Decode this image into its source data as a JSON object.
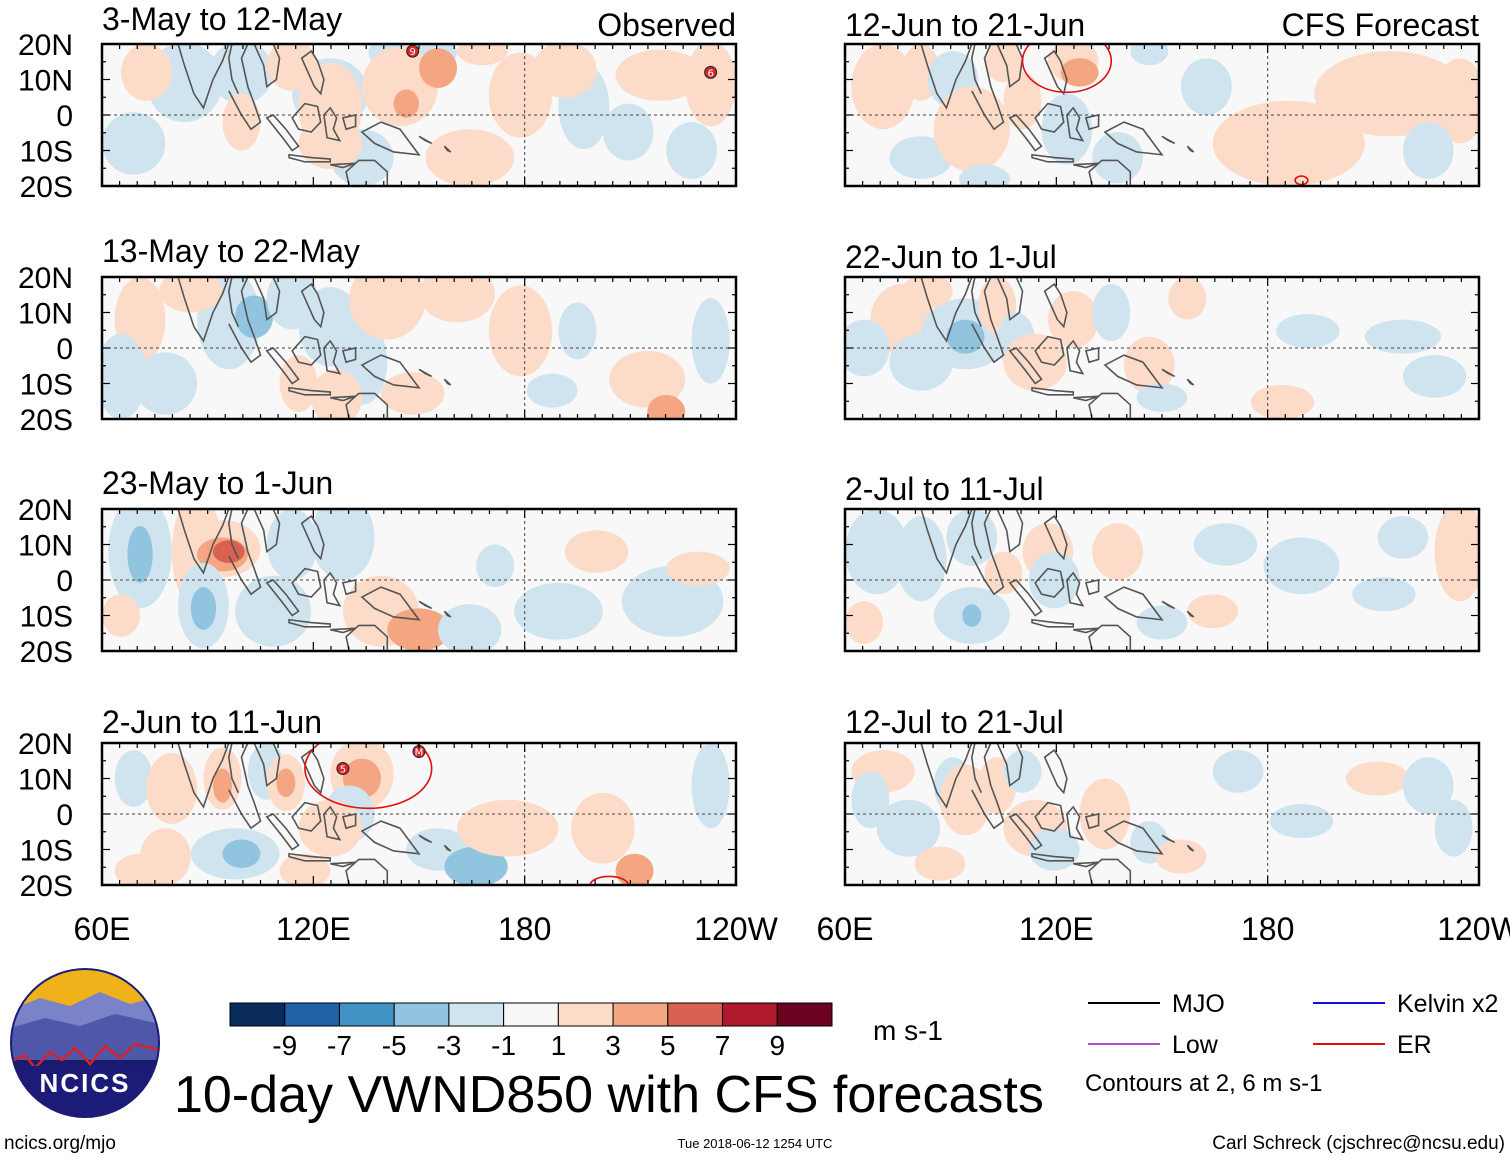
{
  "panels": [
    {
      "id": "obs-1",
      "title": "3-May to 12-May",
      "label": "Observed",
      "col": 0,
      "row": 0
    },
    {
      "id": "obs-2",
      "title": "13-May to 22-May",
      "col": 0,
      "row": 1
    },
    {
      "id": "obs-3",
      "title": "23-May to 1-Jun",
      "col": 0,
      "row": 2
    },
    {
      "id": "obs-4",
      "title": "2-Jun to 11-Jun",
      "col": 0,
      "row": 3
    },
    {
      "id": "fc-1",
      "title": "12-Jun to 21-Jun",
      "label": "CFS Forecast",
      "col": 1,
      "row": 0
    },
    {
      "id": "fc-2",
      "title": "22-Jun to 1-Jul",
      "col": 1,
      "row": 1
    },
    {
      "id": "fc-3",
      "title": "2-Jul to 11-Jul",
      "col": 1,
      "row": 2
    },
    {
      "id": "fc-4",
      "title": "12-Jul to 21-Jul",
      "col": 1,
      "row": 3
    }
  ],
  "lat_labels": [
    "20N",
    "10N",
    "0",
    "10S",
    "20S"
  ],
  "lon_labels": [
    "60E",
    "120E",
    "180",
    "120W"
  ],
  "colorbar": {
    "colors": [
      "#0a2c5c",
      "#1f62a8",
      "#4193c5",
      "#91c4de",
      "#d0e4f0",
      "#f7f7f7",
      "#fcdcc9",
      "#f4a683",
      "#d86151",
      "#b11a2d",
      "#6a0220"
    ],
    "labels": [
      "-9",
      "-7",
      "-5",
      "-3",
      "-1",
      "1",
      "3",
      "5",
      "7",
      "9"
    ],
    "units": "m s-1"
  },
  "legend": {
    "items": [
      {
        "label": "MJO",
        "color": "#000000"
      },
      {
        "label": "Kelvin x2",
        "color": "#1111dd"
      },
      {
        "label": "Low",
        "color": "#a855d8"
      },
      {
        "label": "ER",
        "color": "#dd1111"
      }
    ],
    "note": "Contours at 2, 6 m s-1"
  },
  "logo_text": "NCICS",
  "title": "10-day VWND850 with CFS forecasts",
  "footer": {
    "left": "ncics.org/mjo",
    "center": "Tue 2018-06-12 1254 UTC",
    "right": "Carl Schreck (cjschrec@ncsu.edu)"
  },
  "blobs": [
    [
      [
        0.13,
        0.27,
        0.06,
        0.28,
        -1
      ],
      [
        0.22,
        0.2,
        0.05,
        0.22,
        -1
      ],
      [
        0.36,
        0.35,
        0.06,
        0.25,
        -1
      ],
      [
        0.49,
        0.06,
        0.07,
        0.15,
        -1
      ],
      [
        0.41,
        0.8,
        0.05,
        0.2,
        -1
      ],
      [
        0.05,
        0.7,
        0.05,
        0.22,
        -1
      ],
      [
        0.07,
        0.2,
        0.04,
        0.2,
        1
      ],
      [
        0.36,
        0.45,
        0.05,
        0.32,
        1
      ],
      [
        0.47,
        0.3,
        0.06,
        0.28,
        1
      ],
      [
        0.53,
        0.17,
        0.03,
        0.14,
        3
      ],
      [
        0.48,
        0.42,
        0.02,
        0.1,
        3
      ],
      [
        0.3,
        0.15,
        0.04,
        0.18,
        1
      ],
      [
        0.36,
        0.7,
        0.05,
        0.18,
        1
      ],
      [
        0.58,
        0.8,
        0.07,
        0.2,
        1
      ],
      [
        0.66,
        0.36,
        0.05,
        0.3,
        1
      ],
      [
        0.76,
        0.44,
        0.04,
        0.3,
        -1
      ],
      [
        0.73,
        0.18,
        0.05,
        0.2,
        1
      ],
      [
        0.88,
        0.22,
        0.07,
        0.18,
        1
      ],
      [
        0.96,
        0.28,
        0.04,
        0.3,
        1
      ],
      [
        0.83,
        0.62,
        0.04,
        0.2,
        -1
      ],
      [
        0.93,
        0.75,
        0.04,
        0.2,
        -1
      ],
      [
        0.6,
        0.05,
        0.04,
        0.1,
        1
      ],
      [
        0.22,
        0.55,
        0.03,
        0.2,
        1
      ]
    ],
    [
      [
        0.06,
        0.3,
        0.04,
        0.3,
        1
      ],
      [
        0.1,
        0.75,
        0.05,
        0.22,
        -1
      ],
      [
        0.2,
        0.3,
        0.05,
        0.35,
        -1
      ],
      [
        0.24,
        0.28,
        0.03,
        0.15,
        -3
      ],
      [
        0.3,
        0.15,
        0.04,
        0.22,
        -1
      ],
      [
        0.36,
        0.35,
        0.05,
        0.28,
        -1
      ],
      [
        0.41,
        0.6,
        0.04,
        0.3,
        -1
      ],
      [
        0.45,
        0.16,
        0.06,
        0.28,
        1
      ],
      [
        0.56,
        0.12,
        0.06,
        0.2,
        1
      ],
      [
        0.66,
        0.38,
        0.05,
        0.32,
        1
      ],
      [
        0.49,
        0.82,
        0.05,
        0.15,
        1
      ],
      [
        0.37,
        0.85,
        0.04,
        0.2,
        1
      ],
      [
        0.75,
        0.38,
        0.03,
        0.2,
        -1
      ],
      [
        0.86,
        0.72,
        0.06,
        0.2,
        1
      ],
      [
        0.89,
        0.95,
        0.03,
        0.12,
        3
      ],
      [
        0.96,
        0.45,
        0.03,
        0.3,
        -1
      ],
      [
        0.03,
        0.7,
        0.04,
        0.3,
        -1
      ],
      [
        0.14,
        0.1,
        0.05,
        0.15,
        1
      ],
      [
        0.31,
        0.75,
        0.03,
        0.2,
        1
      ],
      [
        0.71,
        0.8,
        0.04,
        0.12,
        -1
      ]
    ],
    [
      [
        0.06,
        0.3,
        0.05,
        0.4,
        -1
      ],
      [
        0.06,
        0.32,
        0.02,
        0.2,
        -3
      ],
      [
        0.15,
        0.3,
        0.04,
        0.4,
        1
      ],
      [
        0.19,
        0.28,
        0.06,
        0.2,
        1
      ],
      [
        0.19,
        0.32,
        0.04,
        0.12,
        3
      ],
      [
        0.2,
        0.3,
        0.025,
        0.08,
        5
      ],
      [
        0.3,
        0.25,
        0.04,
        0.25,
        -1
      ],
      [
        0.16,
        0.68,
        0.04,
        0.3,
        -1
      ],
      [
        0.16,
        0.7,
        0.02,
        0.15,
        -3
      ],
      [
        0.27,
        0.72,
        0.06,
        0.25,
        -1
      ],
      [
        0.38,
        0.2,
        0.05,
        0.3,
        -1
      ],
      [
        0.44,
        0.72,
        0.06,
        0.25,
        1
      ],
      [
        0.5,
        0.85,
        0.05,
        0.15,
        3
      ],
      [
        0.58,
        0.85,
        0.05,
        0.18,
        -1
      ],
      [
        0.72,
        0.72,
        0.07,
        0.2,
        -1
      ],
      [
        0.9,
        0.65,
        0.08,
        0.25,
        -1
      ],
      [
        0.78,
        0.3,
        0.05,
        0.15,
        1
      ],
      [
        0.94,
        0.42,
        0.05,
        0.12,
        1
      ],
      [
        0.03,
        0.75,
        0.03,
        0.15,
        1
      ],
      [
        0.62,
        0.4,
        0.03,
        0.15,
        -1
      ]
    ],
    [
      [
        0.05,
        0.25,
        0.03,
        0.2,
        -1
      ],
      [
        0.11,
        0.32,
        0.04,
        0.25,
        1
      ],
      [
        0.19,
        0.25,
        0.03,
        0.22,
        1
      ],
      [
        0.19,
        0.3,
        0.015,
        0.12,
        3
      ],
      [
        0.26,
        0.2,
        0.03,
        0.2,
        -1
      ],
      [
        0.29,
        0.28,
        0.03,
        0.2,
        1
      ],
      [
        0.29,
        0.28,
        0.015,
        0.1,
        3
      ],
      [
        0.41,
        0.22,
        0.05,
        0.25,
        1
      ],
      [
        0.41,
        0.25,
        0.03,
        0.14,
        3
      ],
      [
        0.39,
        0.5,
        0.04,
        0.2,
        -1
      ],
      [
        0.21,
        0.78,
        0.07,
        0.18,
        -1
      ],
      [
        0.22,
        0.78,
        0.03,
        0.1,
        -3
      ],
      [
        0.1,
        0.8,
        0.04,
        0.2,
        1
      ],
      [
        0.36,
        0.6,
        0.05,
        0.2,
        1
      ],
      [
        0.53,
        0.75,
        0.05,
        0.15,
        -1
      ],
      [
        0.59,
        0.87,
        0.05,
        0.14,
        -3
      ],
      [
        0.64,
        0.6,
        0.08,
        0.2,
        1
      ],
      [
        0.84,
        0.9,
        0.03,
        0.12,
        3
      ],
      [
        0.79,
        0.6,
        0.05,
        0.25,
        1
      ],
      [
        0.96,
        0.3,
        0.03,
        0.3,
        -1
      ],
      [
        0.06,
        0.9,
        0.04,
        0.12,
        1
      ],
      [
        0.32,
        0.9,
        0.04,
        0.12,
        1
      ]
    ],
    [
      [
        0.06,
        0.3,
        0.05,
        0.3,
        1
      ],
      [
        0.12,
        0.2,
        0.03,
        0.2,
        1
      ],
      [
        0.17,
        0.25,
        0.04,
        0.2,
        -1
      ],
      [
        0.12,
        0.8,
        0.05,
        0.15,
        -1
      ],
      [
        0.2,
        0.6,
        0.06,
        0.3,
        1
      ],
      [
        0.28,
        0.4,
        0.03,
        0.2,
        1
      ],
      [
        0.35,
        0.6,
        0.04,
        0.25,
        -1
      ],
      [
        0.25,
        0.12,
        0.03,
        0.15,
        1
      ],
      [
        0.36,
        0.12,
        0.04,
        0.15,
        1
      ],
      [
        0.37,
        0.2,
        0.03,
        0.1,
        3
      ],
      [
        0.43,
        0.8,
        0.04,
        0.18,
        -1
      ],
      [
        0.7,
        0.7,
        0.12,
        0.3,
        1
      ],
      [
        0.86,
        0.35,
        0.12,
        0.3,
        1
      ],
      [
        0.97,
        0.4,
        0.04,
        0.3,
        1
      ],
      [
        0.57,
        0.3,
        0.04,
        0.2,
        -1
      ],
      [
        0.92,
        0.75,
        0.04,
        0.2,
        -1
      ],
      [
        0.22,
        0.95,
        0.04,
        0.1,
        -1
      ],
      [
        0.48,
        0.05,
        0.03,
        0.1,
        -1
      ]
    ],
    [
      [
        0.09,
        0.3,
        0.05,
        0.25,
        1
      ],
      [
        0.12,
        0.6,
        0.05,
        0.2,
        -1
      ],
      [
        0.19,
        0.4,
        0.07,
        0.25,
        -1
      ],
      [
        0.19,
        0.42,
        0.03,
        0.12,
        -3
      ],
      [
        0.24,
        0.2,
        0.03,
        0.2,
        1
      ],
      [
        0.27,
        0.45,
        0.03,
        0.2,
        -1
      ],
      [
        0.3,
        0.6,
        0.05,
        0.2,
        1
      ],
      [
        0.36,
        0.3,
        0.04,
        0.2,
        1
      ],
      [
        0.42,
        0.25,
        0.03,
        0.2,
        -1
      ],
      [
        0.48,
        0.62,
        0.04,
        0.2,
        1
      ],
      [
        0.5,
        0.85,
        0.04,
        0.1,
        -1
      ],
      [
        0.69,
        0.88,
        0.05,
        0.12,
        1
      ],
      [
        0.73,
        0.38,
        0.05,
        0.12,
        -1
      ],
      [
        0.88,
        0.42,
        0.06,
        0.12,
        -1
      ],
      [
        0.93,
        0.7,
        0.05,
        0.15,
        -1
      ],
      [
        0.03,
        0.5,
        0.04,
        0.2,
        -1
      ],
      [
        0.54,
        0.15,
        0.03,
        0.15,
        1
      ],
      [
        0.13,
        0.1,
        0.04,
        0.12,
        1
      ]
    ],
    [
      [
        0.05,
        0.3,
        0.05,
        0.3,
        -1
      ],
      [
        0.12,
        0.35,
        0.04,
        0.3,
        -1
      ],
      [
        0.2,
        0.2,
        0.04,
        0.2,
        -1
      ],
      [
        0.25,
        0.45,
        0.03,
        0.15,
        1
      ],
      [
        0.32,
        0.3,
        0.04,
        0.2,
        1
      ],
      [
        0.33,
        0.5,
        0.04,
        0.2,
        -1
      ],
      [
        0.2,
        0.75,
        0.06,
        0.2,
        -1
      ],
      [
        0.2,
        0.75,
        0.015,
        0.08,
        -3
      ],
      [
        0.43,
        0.3,
        0.04,
        0.2,
        1
      ],
      [
        0.5,
        0.8,
        0.04,
        0.12,
        -1
      ],
      [
        0.58,
        0.72,
        0.04,
        0.12,
        1
      ],
      [
        0.72,
        0.4,
        0.06,
        0.2,
        -1
      ],
      [
        0.85,
        0.6,
        0.05,
        0.12,
        -1
      ],
      [
        0.97,
        0.3,
        0.04,
        0.35,
        1
      ],
      [
        0.88,
        0.2,
        0.04,
        0.15,
        -1
      ],
      [
        0.6,
        0.25,
        0.05,
        0.15,
        -1
      ],
      [
        0.03,
        0.8,
        0.03,
        0.15,
        1
      ]
    ],
    [
      [
        0.06,
        0.2,
        0.05,
        0.15,
        1
      ],
      [
        0.1,
        0.6,
        0.05,
        0.2,
        -1
      ],
      [
        0.17,
        0.3,
        0.03,
        0.2,
        -1
      ],
      [
        0.19,
        0.4,
        0.04,
        0.25,
        1
      ],
      [
        0.24,
        0.3,
        0.03,
        0.2,
        1
      ],
      [
        0.28,
        0.2,
        0.03,
        0.15,
        -1
      ],
      [
        0.3,
        0.6,
        0.05,
        0.2,
        1
      ],
      [
        0.33,
        0.75,
        0.04,
        0.15,
        -1
      ],
      [
        0.41,
        0.5,
        0.04,
        0.25,
        1
      ],
      [
        0.48,
        0.7,
        0.03,
        0.15,
        -1
      ],
      [
        0.53,
        0.8,
        0.04,
        0.12,
        1
      ],
      [
        0.62,
        0.2,
        0.04,
        0.15,
        -1
      ],
      [
        0.72,
        0.55,
        0.05,
        0.12,
        -1
      ],
      [
        0.84,
        0.25,
        0.05,
        0.12,
        1
      ],
      [
        0.92,
        0.3,
        0.04,
        0.2,
        -1
      ],
      [
        0.96,
        0.6,
        0.03,
        0.2,
        -1
      ],
      [
        0.15,
        0.85,
        0.04,
        0.12,
        1
      ],
      [
        0.04,
        0.4,
        0.03,
        0.2,
        -1
      ]
    ]
  ],
  "contours": [
    [],
    [],
    [],
    [
      [
        0.42,
        0.18,
        0.1,
        0.28,
        "#dd1111"
      ],
      [
        0.8,
        1.0,
        0.03,
        0.06,
        "#dd1111"
      ]
    ],
    [
      [
        0.35,
        0.12,
        0.07,
        0.22,
        "#dd1111"
      ],
      [
        0.72,
        0.96,
        0.01,
        0.03,
        "#dd1111"
      ]
    ],
    [],
    [],
    []
  ],
  "storms": [
    [
      [
        0.49,
        0.05,
        "9"
      ],
      [
        0.96,
        0.2,
        "6"
      ]
    ],
    [],
    [],
    [
      [
        0.38,
        0.18,
        "5"
      ],
      [
        0.5,
        0.06,
        "M"
      ]
    ],
    [],
    [],
    [],
    []
  ]
}
